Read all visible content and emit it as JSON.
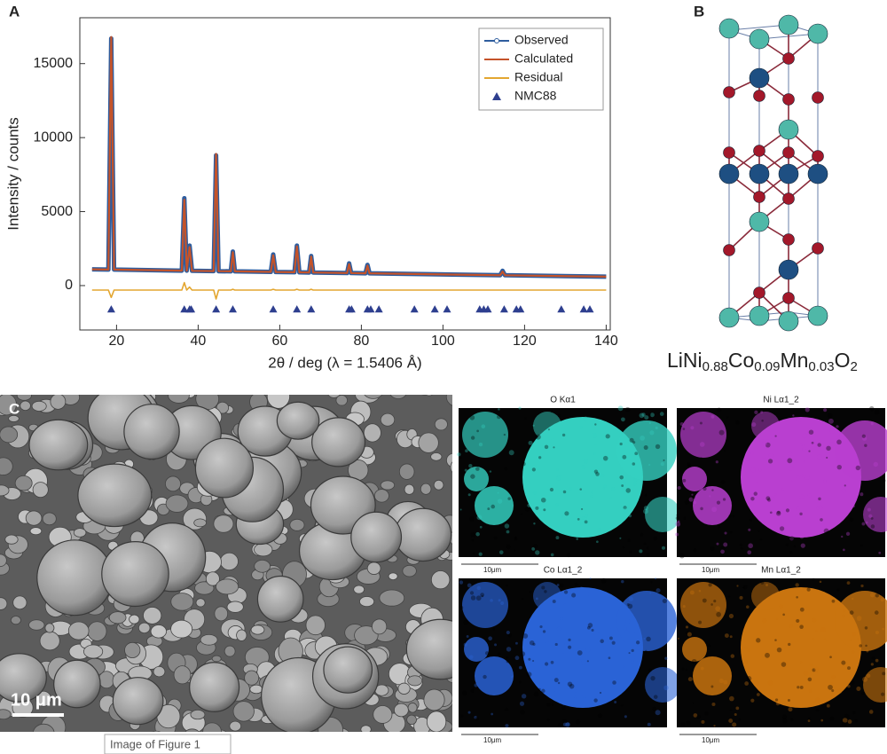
{
  "panels": {
    "a": "A",
    "b": "B",
    "c": "C"
  },
  "chart_data": {
    "type": "line",
    "xlabel": "2θ / deg (λ = 1.5406 Å)",
    "ylabel": "Intensity / counts",
    "xlim": [
      11,
      141
    ],
    "ylim": [
      -3000,
      18100
    ],
    "xticks": [
      20,
      40,
      60,
      80,
      100,
      120,
      140
    ],
    "yticks": [
      0,
      5000,
      10000,
      15000
    ],
    "legend": "upper right",
    "x": [
      14,
      18,
      18.7,
      19.4,
      36,
      36.6,
      37.2,
      37.9,
      38.5,
      43.8,
      44.4,
      45.0,
      48.0,
      48.5,
      49.0,
      57.8,
      58.4,
      59.0,
      63.6,
      64.2,
      64.8,
      67.2,
      67.7,
      68.2,
      76.5,
      77,
      77.5,
      81,
      81.5,
      82,
      93,
      110,
      114,
      114.6,
      115.2,
      140
    ],
    "series": [
      {
        "name": "Observed",
        "color": "#2f5d9e",
        "marker": "circle",
        "values": [
          1100,
          1084,
          16700,
          1080,
          1012,
          5900,
          1008,
          2700,
          1000,
          980,
          8800,
          976,
          964,
          2300,
          960,
          925,
          2100,
          920,
          900,
          2700,
          897,
          887,
          2000,
          883,
          850,
          1500,
          846,
          832,
          1400,
          828,
          784,
          716,
          700,
          1000,
          696,
          600
        ]
      },
      {
        "name": "Calculated",
        "color": "#c4532a",
        "values": [
          1100,
          1084,
          16800,
          1080,
          1012,
          5800,
          1008,
          2600,
          1000,
          980,
          8900,
          976,
          964,
          2250,
          960,
          925,
          2050,
          920,
          900,
          2650,
          897,
          887,
          1950,
          883,
          850,
          1450,
          846,
          832,
          1350,
          828,
          784,
          716,
          700,
          950,
          696,
          600
        ]
      },
      {
        "name": "Residual",
        "color": "#e3a630",
        "values": [
          -300,
          -300,
          -800,
          -300,
          -300,
          200,
          -300,
          -100,
          -300,
          -300,
          -900,
          -300,
          -300,
          -250,
          -300,
          -300,
          -250,
          -300,
          -300,
          -250,
          -300,
          -300,
          -250,
          -300,
          -300,
          -300,
          -300,
          -300,
          -300,
          -300,
          -300,
          -300,
          -300,
          -300,
          -300,
          -300
        ]
      },
      {
        "name": "NMC88",
        "color": "#2e3f8f",
        "marker": "triangle",
        "x": [
          18.7,
          36.6,
          37.9,
          38.3,
          44.4,
          48.5,
          58.4,
          64.2,
          67.7,
          77,
          77.6,
          81.5,
          82.3,
          84.3,
          93,
          98,
          101,
          109,
          110,
          111,
          115,
          118,
          119,
          129,
          134.5,
          136
        ],
        "values": [
          -1600,
          -1600,
          -1600,
          -1600,
          -1600,
          -1600,
          -1600,
          -1600,
          -1600,
          -1600,
          -1600,
          -1600,
          -1600,
          -1600,
          -1600,
          -1600,
          -1600,
          -1600,
          -1600,
          -1600,
          -1600,
          -1600,
          -1600,
          -1600,
          -1600,
          -1600
        ]
      }
    ]
  },
  "structure": {
    "formula": [
      "LiNi",
      "0.88",
      "Co",
      "0.09",
      "Mn",
      "0.03",
      "O",
      "2"
    ]
  },
  "sem": {
    "scale_bar": "10 μm",
    "caption": "Image of Figure 1"
  },
  "eds_maps": [
    {
      "label": "O Kα1",
      "scale_bar": "10μm",
      "color": "#34cfc0"
    },
    {
      "label": "Ni Lα1_2",
      "scale_bar": "10μm",
      "color": "#b93fd0"
    },
    {
      "label": "Co Lα1_2",
      "scale_bar": "10μm",
      "color": "#2a63d6"
    },
    {
      "label": "Mn Lα1_2",
      "scale_bar": "10μm",
      "color": "#c9740f"
    }
  ]
}
